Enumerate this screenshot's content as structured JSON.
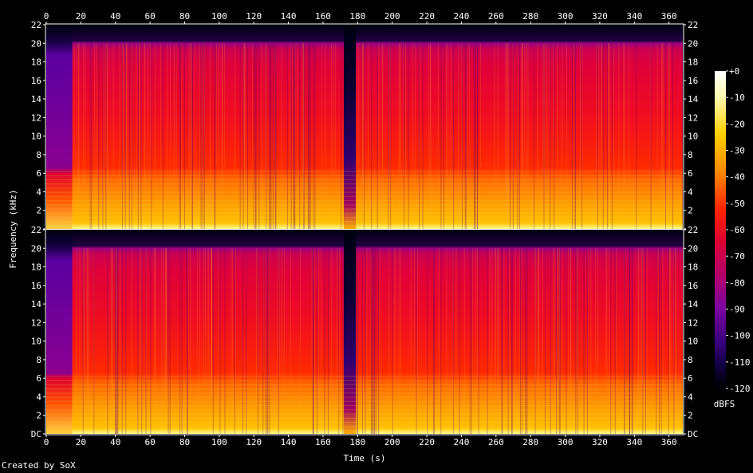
{
  "credit": "Created by SoX",
  "chart_data": {
    "type": "heatmap",
    "subtype": "spectrogram",
    "xlabel": "Time (s)",
    "ylabel": "Frequency (kHz)",
    "colorbar_label": "dBFS",
    "xlim": [
      0,
      368
    ],
    "ylim": [
      0,
      22
    ],
    "x_ticks": [
      0,
      20,
      40,
      60,
      80,
      100,
      120,
      140,
      160,
      180,
      200,
      220,
      240,
      260,
      280,
      300,
      320,
      340,
      360
    ],
    "y_ticks": [
      0,
      2,
      4,
      6,
      8,
      10,
      12,
      14,
      16,
      18,
      20,
      22
    ],
    "y_tick_labels_top": [
      "",
      "2",
      "4",
      "6",
      "8",
      "10",
      "12",
      "14",
      "16",
      "18",
      "20",
      "22"
    ],
    "y_tick_labels_bottom": [
      "DC",
      "2",
      "4",
      "6",
      "8",
      "10",
      "12",
      "14",
      "16",
      "18",
      "20",
      "22"
    ],
    "colorbar_ticks": [
      0,
      -10,
      -20,
      -30,
      -40,
      -50,
      -60,
      -70,
      -80,
      -90,
      -100,
      -110,
      -120
    ],
    "colorbar_tick_labels": [
      "+0",
      "-10",
      "-20",
      "-30",
      "-40",
      "-50",
      "-60",
      "-70",
      "-80",
      "-90",
      "-100",
      "-110",
      "-120"
    ],
    "colorbar_range": [
      -120,
      0
    ],
    "channels": 2,
    "silent_gaps_s": [
      [
        172,
        179
      ]
    ],
    "low_energy_regions_s": [
      [
        0,
        15
      ],
      [
        368,
        370
      ]
    ],
    "bandwidth_khz": 20
  }
}
